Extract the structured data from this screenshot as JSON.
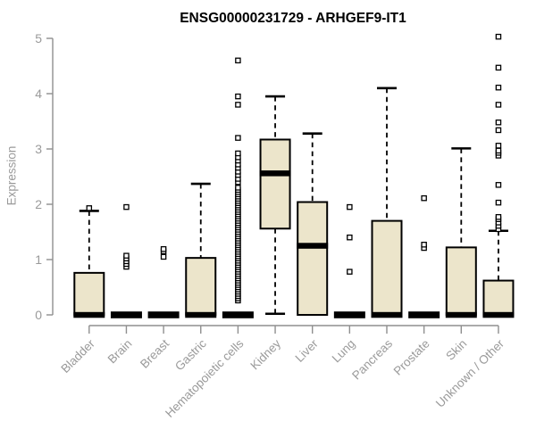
{
  "chart_data": {
    "type": "boxplot",
    "title": "ENSG00000231729 - ARHGEF9-IT1",
    "ylabel": "Expression",
    "xlabel": "",
    "ylim": [
      0,
      5
    ],
    "yticks": [
      0,
      1,
      2,
      3,
      4,
      5
    ],
    "grid": false,
    "legend": "none",
    "colors": {
      "background": "#ffffff",
      "box_fill": "#ece5cb",
      "box_stroke": "#000000",
      "axis": "#8f8f8f",
      "tick_label": "#9a9a9a",
      "title": "#000000"
    },
    "categories": [
      "Bladder",
      "Brain",
      "Breast",
      "Gastric",
      "Hematopoietic cells",
      "Kidney",
      "Liver",
      "Lung",
      "Pancreas",
      "Prostate",
      "Skin",
      "Unknown / Other"
    ],
    "boxes": [
      {
        "category": "Bladder",
        "low": 0,
        "q1": 0,
        "median": 0,
        "q3": 0.76,
        "high": 1.88,
        "outliers": [
          1.93
        ]
      },
      {
        "category": "Brain",
        "low": 0,
        "q1": 0,
        "median": 0,
        "q3": 0,
        "high": 0,
        "outliers": [
          0.87,
          0.92,
          0.97,
          1.02,
          1.07,
          1.95
        ]
      },
      {
        "category": "Breast",
        "low": 0,
        "q1": 0,
        "median": 0,
        "q3": 0,
        "high": 0,
        "outliers": [
          1.05,
          1.15,
          1.19
        ]
      },
      {
        "category": "Gastric",
        "low": 0,
        "q1": 0,
        "median": 0,
        "q3": 1.03,
        "high": 2.37,
        "outliers": []
      },
      {
        "category": "Hematopoietic cells",
        "low": 0,
        "q1": 0,
        "median": 0,
        "q3": 0,
        "high": 0,
        "outliers": [
          0.26,
          0.3,
          0.34,
          0.38,
          0.42,
          0.46,
          0.5,
          0.54,
          0.58,
          0.62,
          0.66,
          0.7,
          0.74,
          0.78,
          0.82,
          0.86,
          0.9,
          0.94,
          0.98,
          1.02,
          1.06,
          1.1,
          1.14,
          1.18,
          1.22,
          1.26,
          1.3,
          1.34,
          1.38,
          1.42,
          1.46,
          1.5,
          1.54,
          1.58,
          1.62,
          1.66,
          1.7,
          1.74,
          1.78,
          1.82,
          1.86,
          1.9,
          1.94,
          1.98,
          2.02,
          2.06,
          2.1,
          2.14,
          2.18,
          2.22,
          2.26,
          2.3,
          2.4,
          2.46,
          2.53,
          2.59,
          2.66,
          2.72,
          2.79,
          2.85,
          2.92,
          3.2,
          3.8,
          3.95,
          4.6
        ]
      },
      {
        "category": "Kidney",
        "low": 0.02,
        "q1": 1.56,
        "median": 2.56,
        "q3": 3.17,
        "high": 3.95,
        "outliers": []
      },
      {
        "category": "Liver",
        "low": 0,
        "q1": 0,
        "median": 1.25,
        "q3": 2.04,
        "high": 3.28,
        "outliers": []
      },
      {
        "category": "Lung",
        "low": 0,
        "q1": 0,
        "median": 0,
        "q3": 0,
        "high": 0,
        "outliers": [
          0.78,
          1.4,
          1.95
        ]
      },
      {
        "category": "Pancreas",
        "low": 0,
        "q1": 0,
        "median": 0,
        "q3": 1.7,
        "high": 4.1,
        "outliers": []
      },
      {
        "category": "Prostate",
        "low": 0,
        "q1": 0,
        "median": 0,
        "q3": 0,
        "high": 0,
        "outliers": [
          1.21,
          1.27,
          2.11
        ]
      },
      {
        "category": "Skin",
        "low": 0,
        "q1": 0,
        "median": 0,
        "q3": 1.22,
        "high": 3.01,
        "outliers": []
      },
      {
        "category": "Unknown / Other",
        "low": 0,
        "q1": 0,
        "median": 0,
        "q3": 0.62,
        "high": 1.52,
        "outliers": [
          1.55,
          1.61,
          1.67,
          1.73,
          1.77,
          2.03,
          2.35,
          2.88,
          2.93,
          2.97,
          3.06,
          3.34,
          3.48,
          3.8,
          4.11,
          4.47,
          5.03
        ]
      }
    ]
  }
}
